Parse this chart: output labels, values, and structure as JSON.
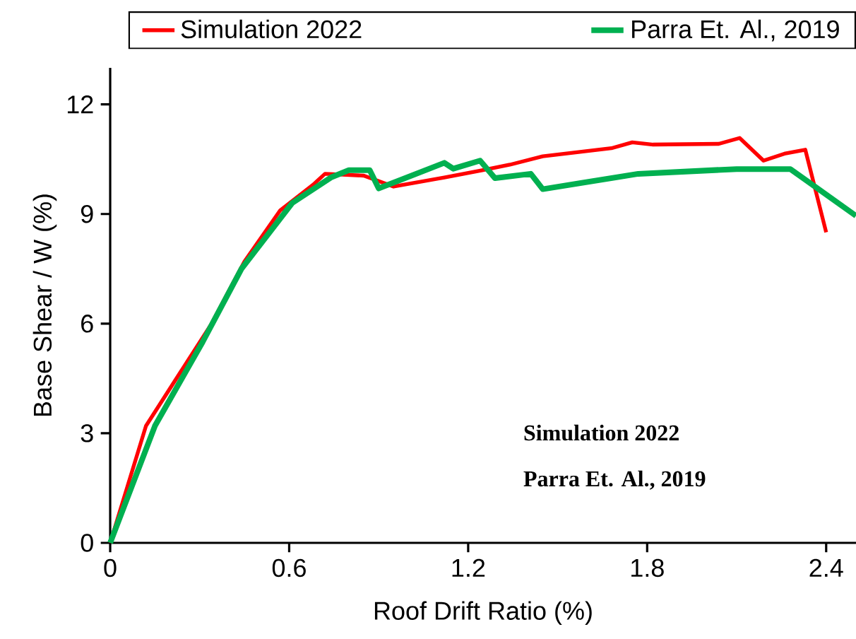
{
  "chart_data": {
    "type": "line",
    "xlabel": "Roof Drift Ratio (%)",
    "ylabel": "Base Shear / W (%)",
    "xlim": [
      0,
      2.5
    ],
    "ylim": [
      0,
      13
    ],
    "xticks": [
      0,
      0.6,
      1.2,
      1.8,
      2.4
    ],
    "yticks": [
      0,
      3,
      6,
      9,
      12
    ],
    "grid": false,
    "legend": "top",
    "marker": "none",
    "line_style": "solid",
    "annotations": [
      "Simulation 2022",
      "Parra Et. Al., 2019"
    ],
    "series": [
      {
        "name": "Simulation 2022",
        "color": "#ff0000",
        "x": [
          0,
          0.12,
          0.34,
          0.45,
          0.57,
          0.68,
          0.72,
          0.85,
          0.95,
          1.12,
          1.25,
          1.34,
          1.45,
          1.68,
          1.75,
          1.82,
          2.04,
          2.11,
          2.19,
          2.26,
          2.33,
          2.4
        ],
        "values": [
          0,
          3.2,
          6.0,
          7.7,
          9.1,
          9.8,
          10.1,
          10.05,
          9.75,
          10.0,
          10.2,
          10.35,
          10.58,
          10.8,
          10.96,
          10.9,
          10.92,
          11.08,
          10.46,
          10.65,
          10.76,
          8.5
        ]
      },
      {
        "name": "Parra Et. Al., 2019",
        "color": "#00b050",
        "x": [
          0,
          0.15,
          0.31,
          0.44,
          0.61,
          0.74,
          0.8,
          0.87,
          0.9,
          1.12,
          1.15,
          1.24,
          1.29,
          1.41,
          1.45,
          1.77,
          2.1,
          2.28,
          2.5
        ],
        "values": [
          0,
          3.2,
          5.5,
          7.5,
          9.3,
          10.0,
          10.2,
          10.2,
          9.7,
          10.4,
          10.24,
          10.46,
          9.98,
          10.1,
          9.68,
          10.1,
          10.23,
          10.23,
          8.95
        ]
      }
    ]
  }
}
